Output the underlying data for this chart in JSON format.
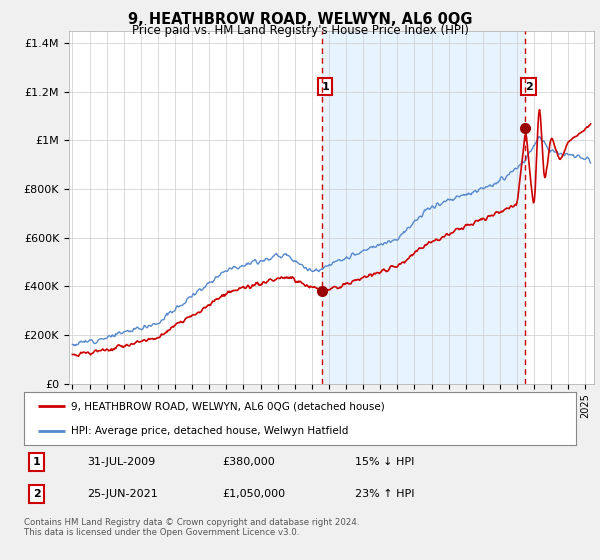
{
  "title": "9, HEATHBROW ROAD, WELWYN, AL6 0QG",
  "subtitle": "Price paid vs. HM Land Registry's House Price Index (HPI)",
  "ylabel_ticks": [
    "£0",
    "£200K",
    "£400K",
    "£600K",
    "£800K",
    "£1M",
    "£1.2M",
    "£1.4M"
  ],
  "ytick_vals": [
    0,
    200000,
    400000,
    600000,
    800000,
    1000000,
    1200000,
    1400000
  ],
  "ylim": [
    0,
    1450000
  ],
  "xlim_start": 1994.8,
  "xlim_end": 2025.5,
  "red_line_color": "#cc0000",
  "blue_line_color": "#5588cc",
  "shade_color": "#ddeeff",
  "marker_color_red": "#990000",
  "vline_color": "#cc0000",
  "point1_x": 2009.58,
  "point1_y": 380000,
  "point1_label": "1",
  "point2_x": 2021.48,
  "point2_y": 1050000,
  "point2_label": "2",
  "legend_line1": "9, HEATHBROW ROAD, WELWYN, AL6 0QG (detached house)",
  "legend_line2": "HPI: Average price, detached house, Welwyn Hatfield",
  "table_row1": [
    "1",
    "31-JUL-2009",
    "£380,000",
    "15% ↓ HPI"
  ],
  "table_row2": [
    "2",
    "25-JUN-2021",
    "£1,050,000",
    "23% ↑ HPI"
  ],
  "footer": "Contains HM Land Registry data © Crown copyright and database right 2024.\nThis data is licensed under the Open Government Licence v3.0.",
  "bg_color": "#f0f0f0",
  "plot_bg_color": "#ffffff"
}
